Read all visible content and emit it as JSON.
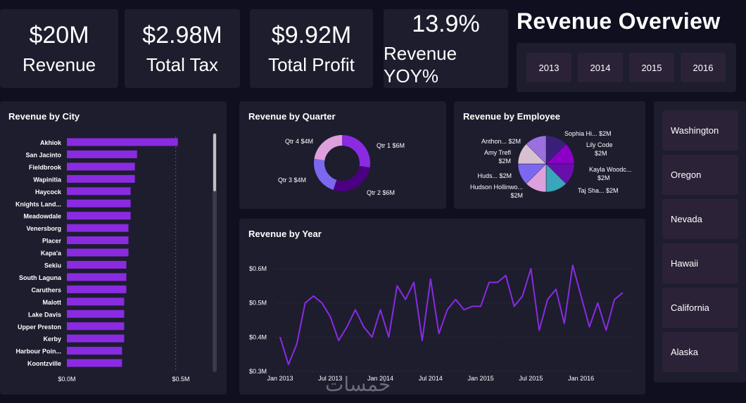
{
  "kpis": [
    {
      "value": "$20M",
      "label": "Revenue"
    },
    {
      "value": "$2.98M",
      "label": "Total Tax"
    },
    {
      "value": "$9.92M",
      "label": "Total Profit"
    },
    {
      "value": "13.9%",
      "label": "Revenue YOY%"
    }
  ],
  "header": {
    "title": "Revenue Overview"
  },
  "years": [
    "2013",
    "2014",
    "2015",
    "2016"
  ],
  "states": [
    "Washington",
    "Oregon",
    "Nevada",
    "Hawaii",
    "California",
    "Alaska"
  ],
  "watermark": "خمسات",
  "colors": {
    "bar": "#8a2be2",
    "line": "#8a2be2",
    "panel": "#1d1d2e",
    "background": "#0f0f1f"
  },
  "chart_data": [
    {
      "type": "bar",
      "orientation": "horizontal",
      "title": "Revenue by City",
      "categories": [
        "Akhiok",
        "San Jacinto",
        "Fieldbrook",
        "Wapinitia",
        "Haycock",
        "Knights Land...",
        "Meadowdale",
        "Venersborg",
        "Placer",
        "Kapa'a",
        "Sekiu",
        "South Laguna",
        "Caruthers",
        "Malott",
        "Lake Davis",
        "Upper Preston",
        "Kerby",
        "Harbour Poin...",
        "Koontzville"
      ],
      "values": [
        0.55,
        0.36,
        0.35,
        0.35,
        0.33,
        0.33,
        0.33,
        0.32,
        0.32,
        0.32,
        0.31,
        0.31,
        0.31,
        0.3,
        0.3,
        0.3,
        0.3,
        0.29,
        0.29
      ],
      "unit": "$M",
      "xticks": [
        "$0.0M",
        "$0.5M"
      ],
      "xlim": [
        0,
        0.62
      ],
      "reference_line": 0.55
    },
    {
      "type": "pie",
      "donut": true,
      "title": "Revenue by Quarter",
      "labels": [
        "Qtr 1 $6M",
        "Qtr 2 $6M",
        "Qtr 3 $4M",
        "Qtr 4 $4M"
      ],
      "values": [
        5.5,
        5.5,
        4.5,
        4.5
      ],
      "colors": [
        "#8a2be2",
        "#4b0082",
        "#7b68ee",
        "#dda0dd"
      ]
    },
    {
      "type": "pie",
      "title": "Revenue by Employee",
      "labels": [
        "Sophia Hi... $2M",
        "Lily Code $2M",
        "Kayla Woodc... $2M",
        "Taj Sha... $2M",
        "Hudson Hollinwo... $2M",
        "Huds... $2M",
        "Amy Trefl $2M",
        "Anthon... $2M"
      ],
      "values": [
        2.5,
        2.5,
        2.5,
        2.5,
        2.5,
        2.5,
        2.5,
        2.5
      ],
      "colors": [
        "#3a1f7a",
        "#8a00c4",
        "#6a0dad",
        "#3aa6b9",
        "#dda0dd",
        "#7b68ee",
        "#d8c0d0",
        "#9b6fe0"
      ]
    },
    {
      "type": "line",
      "title": "Revenue by Year",
      "x": [
        "2013-01",
        "2013-02",
        "2013-03",
        "2013-04",
        "2013-05",
        "2013-06",
        "2013-07",
        "2013-08",
        "2013-09",
        "2013-10",
        "2013-11",
        "2013-12",
        "2014-01",
        "2014-02",
        "2014-03",
        "2014-04",
        "2014-05",
        "2014-06",
        "2014-07",
        "2014-08",
        "2014-09",
        "2014-10",
        "2014-11",
        "2014-12",
        "2015-01",
        "2015-02",
        "2015-03",
        "2015-04",
        "2015-05",
        "2015-06",
        "2015-07",
        "2015-08",
        "2015-09",
        "2015-10",
        "2015-11",
        "2015-12",
        "2016-01",
        "2016-02",
        "2016-03",
        "2016-04",
        "2016-05",
        "2016-06"
      ],
      "values": [
        0.4,
        0.32,
        0.38,
        0.5,
        0.52,
        0.5,
        0.46,
        0.39,
        0.43,
        0.48,
        0.43,
        0.4,
        0.48,
        0.4,
        0.55,
        0.51,
        0.56,
        0.39,
        0.57,
        0.41,
        0.48,
        0.51,
        0.48,
        0.49,
        0.49,
        0.56,
        0.56,
        0.58,
        0.49,
        0.52,
        0.6,
        0.42,
        0.51,
        0.54,
        0.44,
        0.61,
        0.52,
        0.43,
        0.5,
        0.42,
        0.51,
        0.53
      ],
      "yticks": [
        "$0.3M",
        "$0.4M",
        "$0.5M",
        "$0.6M"
      ],
      "ylim": [
        0.3,
        0.6
      ],
      "xticks": [
        "Jan 2013",
        "Jul 2013",
        "Jan 2014",
        "Jul 2014",
        "Jan 2015",
        "Jul 2015",
        "Jan 2016"
      ]
    }
  ]
}
